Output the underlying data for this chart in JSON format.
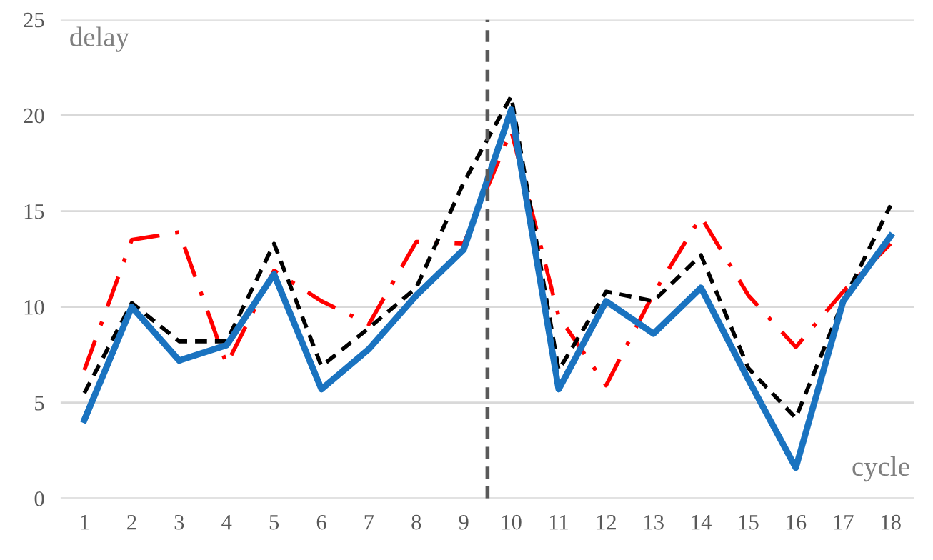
{
  "chart_data": {
    "type": "line",
    "xlabel": "cycle",
    "ylabel": "delay",
    "x": [
      1,
      2,
      3,
      4,
      5,
      6,
      7,
      8,
      9,
      10,
      11,
      12,
      13,
      14,
      15,
      16,
      17,
      18
    ],
    "xlim": [
      0.5,
      18.5
    ],
    "xticks": [
      1,
      2,
      3,
      4,
      5,
      6,
      7,
      8,
      9,
      10,
      11,
      12,
      13,
      14,
      15,
      16,
      17,
      18
    ],
    "ylim": [
      0,
      25
    ],
    "yticks": [
      0,
      5,
      10,
      15,
      20,
      25
    ],
    "grid": "y",
    "legend": false,
    "marker": "none",
    "series": [
      {
        "color": "#ff0000",
        "line_style": "dashdot",
        "values": [
          6.7,
          13.5,
          13.9,
          7,
          11.9,
          10.3,
          9.1,
          13.4,
          13.3,
          19.2,
          9.5,
          5.9,
          10.7,
          14.7,
          10.6,
          7.9,
          10.8,
          13.3
        ]
      },
      {
        "color": "#000000",
        "line_style": "dashed",
        "values": [
          5.5,
          10.2,
          8.2,
          8.2,
          13.3,
          6.9,
          8.9,
          11,
          16.5,
          21,
          6.7,
          10.8,
          10.3,
          12.7,
          6.8,
          4.2,
          10.3,
          15.3
        ]
      },
      {
        "color": "#1a73c0",
        "line_style": "solid",
        "values": [
          4.1,
          10,
          7.2,
          8,
          11.7,
          5.7,
          7.8,
          10.6,
          13,
          20.3,
          5.7,
          10.3,
          8.6,
          11,
          6.2,
          1.6,
          10.3,
          13.7
        ]
      }
    ],
    "ref_lines": [
      {
        "axis": "x",
        "value": 9.5,
        "color": "#595959",
        "line_style": "dashed"
      }
    ]
  }
}
